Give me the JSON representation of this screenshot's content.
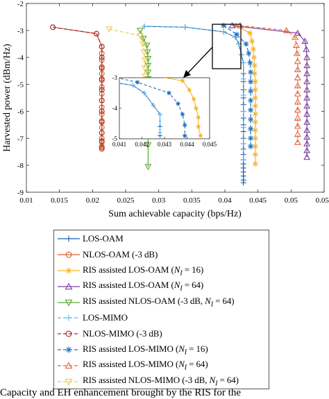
{
  "chart_data": {
    "type": "line",
    "xlabel": "Sum achievable capacity (bps/Hz)",
    "ylabel": "Harvested power (dBm/Hz)",
    "xlim": [
      0.01,
      0.055
    ],
    "ylim": [
      -9,
      -2
    ],
    "x_ticks": [
      "0.01",
      "0.015",
      "0.02",
      "0.025",
      "0.03",
      "0.035",
      "0.04",
      "0.045",
      "0.05",
      "0.055"
    ],
    "y_ticks": [
      "-2",
      "-3",
      "-4",
      "-5",
      "-6",
      "-7",
      "-8",
      "-9"
    ],
    "grid": false,
    "legend_position": "below",
    "series": [
      {
        "name": "LOS-OAM",
        "color": "#1f5fae",
        "marker": "plus",
        "dash": "solid",
        "x": [
          0.0278,
          0.034,
          0.0398,
          0.0416,
          0.0421,
          0.0425,
          0.0428,
          0.0428,
          0.0428,
          0.0428,
          0.0428,
          0.0428,
          0.0428,
          0.0428,
          0.0428,
          0.0428,
          0.0428,
          0.0428,
          0.0428,
          0.0428,
          0.0428,
          0.0428,
          0.0428,
          0.0428,
          0.0428,
          0.0428,
          0.0428
        ],
        "y": [
          -2.85,
          -2.88,
          -3.05,
          -3.25,
          -3.5,
          -3.9,
          -4.2,
          -4.6,
          -4.9,
          -5.2,
          -5.5,
          -5.75,
          -6.0,
          -6.25,
          -6.5,
          -6.75,
          -7.0,
          -7.2,
          -7.4,
          -7.6,
          -7.8,
          -7.95,
          -8.1,
          -8.25,
          -8.4,
          -8.55,
          -8.65
        ]
      },
      {
        "name": "NLOS-OAM (-3 dB)",
        "color": "#d45a2a",
        "marker": "circle",
        "dash": "solid",
        "x": [
          0.014,
          0.0206,
          0.0214,
          0.0214,
          0.0214,
          0.0214,
          0.0214,
          0.0214,
          0.0214,
          0.0214,
          0.0214,
          0.0214,
          0.0214,
          0.0214,
          0.0214,
          0.0214,
          0.0214,
          0.0214,
          0.0214,
          0.0214
        ],
        "y": [
          -2.88,
          -3.12,
          -3.6,
          -3.85,
          -4.1,
          -4.35,
          -4.6,
          -4.85,
          -5.1,
          -5.35,
          -5.6,
          -5.85,
          -6.1,
          -6.35,
          -6.6,
          -6.8,
          -7.0,
          -7.15,
          -7.3,
          -7.4
        ]
      },
      {
        "name": "RIS assisted LOS-OAM (N_I = 16)",
        "color": "#f2b62a",
        "marker": "star",
        "dash": "solid",
        "x": [
          0.0416,
          0.0438,
          0.0441,
          0.0443,
          0.0444,
          0.0445,
          0.0445,
          0.0446,
          0.0446,
          0.0446,
          0.0446,
          0.0446,
          0.0446,
          0.0446,
          0.0446,
          0.0446,
          0.0446,
          0.0446
        ],
        "y": [
          -2.82,
          -3.1,
          -3.4,
          -3.7,
          -4.0,
          -4.3,
          -4.6,
          -4.9,
          -5.2,
          -5.5,
          -5.8,
          -6.1,
          -6.4,
          -6.7,
          -7.0,
          -7.3,
          -7.6,
          -7.95
        ]
      },
      {
        "name": "RIS assisted LOS-OAM (N_I = 64)",
        "color": "#7d3fa1",
        "marker": "triangle-up",
        "dash": "solid",
        "x": [
          0.0411,
          0.051,
          0.0521,
          0.0523,
          0.0524,
          0.0524,
          0.0524,
          0.0524,
          0.0524,
          0.0524,
          0.0524,
          0.0524,
          0.0524,
          0.0524,
          0.0524,
          0.0524,
          0.0524,
          0.0524
        ],
        "y": [
          -2.82,
          -3.1,
          -3.4,
          -3.7,
          -4.0,
          -4.3,
          -4.6,
          -4.9,
          -5.2,
          -5.5,
          -5.8,
          -6.1,
          -6.4,
          -6.7,
          -6.95,
          -7.2,
          -7.45,
          -7.7
        ]
      },
      {
        "name": "RIS assisted NLOS-OAM (-3 dB, N_I = 64)",
        "color": "#5aa62e",
        "marker": "triangle-down",
        "dash": "solid",
        "x": [
          0.0272,
          0.0277,
          0.0282,
          0.0283,
          0.0284,
          0.0284,
          0.0284,
          0.0284,
          0.0284,
          0.0284,
          0.0284,
          0.0284,
          0.0284,
          0.0284,
          0.0284,
          0.0284
        ],
        "y": [
          -3.0,
          -3.3,
          -3.55,
          -3.8,
          -4.05,
          -4.3,
          -4.55,
          -4.8,
          -5.05,
          -5.3,
          -5.55,
          -5.8,
          -6.05,
          -6.4,
          -7.25,
          -8.05
        ]
      },
      {
        "name": "LOS-MIMO",
        "color": "#56b4e9",
        "marker": "plus",
        "dash": "dashed",
        "x": [
          0.0278,
          0.034,
          0.0398,
          0.0416,
          0.0421,
          0.0425,
          0.0428,
          0.0428,
          0.0428,
          0.0428,
          0.0428,
          0.0428,
          0.0428
        ],
        "y": [
          -2.85,
          -2.88,
          -3.05,
          -3.25,
          -3.5,
          -3.9,
          -4.2,
          -4.8,
          -5.4,
          -6.0,
          -6.6,
          -7.2,
          -7.8
        ]
      },
      {
        "name": "NLOS-MIMO (-3 dB)",
        "color": "#a8242a",
        "marker": "circle",
        "dash": "dashed",
        "x": [
          0.014,
          0.0206,
          0.0214,
          0.0214,
          0.0214,
          0.0214,
          0.0214,
          0.0214,
          0.0214,
          0.0214,
          0.0214,
          0.0214,
          0.0214
        ],
        "y": [
          -2.88,
          -3.12,
          -3.6,
          -4.0,
          -4.4,
          -4.8,
          -5.2,
          -5.6,
          -6.0,
          -6.4,
          -6.8,
          -7.1,
          -7.35
        ]
      },
      {
        "name": "RIS assisted LOS-MIMO (N_I = 16)",
        "color": "#1f6fbf",
        "marker": "star",
        "dash": "dashed",
        "x": [
          0.0398,
          0.0418,
          0.0432,
          0.0436,
          0.0438,
          0.0439,
          0.0439,
          0.0439,
          0.0439,
          0.0439,
          0.0439,
          0.0439,
          0.0439,
          0.0439
        ],
        "y": [
          -2.82,
          -3.15,
          -3.5,
          -3.85,
          -4.2,
          -4.55,
          -4.9,
          -5.25,
          -5.6,
          -5.95,
          -6.3,
          -6.65,
          -7.0,
          -7.3
        ]
      },
      {
        "name": "RIS assisted LOS-MIMO (N_I = 64)",
        "color": "#e8633a",
        "marker": "triangle-up",
        "dash": "dashed",
        "x": [
          0.0423,
          0.0493,
          0.0506,
          0.0508,
          0.0509,
          0.051,
          0.051,
          0.051,
          0.051,
          0.051,
          0.051,
          0.051,
          0.051,
          0.051,
          0.051,
          0.051
        ],
        "y": [
          -2.82,
          -3.0,
          -3.25,
          -3.55,
          -3.85,
          -4.15,
          -4.45,
          -4.75,
          -5.05,
          -5.35,
          -5.65,
          -5.95,
          -6.25,
          -6.55,
          -6.85,
          -7.15
        ]
      },
      {
        "name": "RIS assisted NLOS-MIMO (-3 dB, N_I = 64)",
        "color": "#f2c84b",
        "marker": "triangle-down",
        "dash": "dashed",
        "x": [
          0.0225,
          0.0272,
          0.0276,
          0.0278,
          0.0279,
          0.0279,
          0.0279,
          0.0279,
          0.0279,
          0.0279,
          0.0279,
          0.0279
        ],
        "y": [
          -2.95,
          -3.2,
          -3.5,
          -3.8,
          -4.1,
          -4.4,
          -4.7,
          -5.0,
          -5.3,
          -5.6,
          -5.9,
          -6.2
        ]
      }
    ],
    "inset": {
      "xlim": [
        0.041,
        0.045
      ],
      "ylim": [
        -5,
        -3
      ],
      "x_ticks": [
        "0.041",
        "0.042",
        "0.043",
        "0.044",
        "0.045"
      ],
      "y_ticks": [
        "-3",
        "-4",
        "-5"
      ]
    }
  },
  "legend": {
    "items": [
      {
        "label": "LOS-OAM"
      },
      {
        "label": "NLOS-OAM (-3 dB)"
      },
      {
        "label": "RIS assisted LOS-OAM (",
        "sub_var": "N",
        "sub": "I",
        "suffix": " = 16)"
      },
      {
        "label": "RIS assisted LOS-OAM (",
        "sub_var": "N",
        "sub": "I",
        "suffix": " = 64)"
      },
      {
        "label": "RIS assisted NLOS-OAM (-3 dB,  ",
        "sub_var": "N",
        "sub": "I",
        "suffix": " = 64)"
      },
      {
        "label": "LOS-MIMO"
      },
      {
        "label": "NLOS-MIMO (-3 dB)"
      },
      {
        "label": "RIS assisted LOS-MIMO (",
        "sub_var": "N",
        "sub": "I",
        "suffix": " = 16)"
      },
      {
        "label": "RIS assisted LOS-MIMO (",
        "sub_var": "N",
        "sub": "I",
        "suffix": " = 64)"
      },
      {
        "label": "RIS assisted NLOS-MIMO (-3 dB, ",
        "sub_var": "N",
        "sub": "I",
        "suffix": " = 64)"
      }
    ]
  },
  "caption": {
    "text": "Capacity and EH enhancement brought by the RIS for the"
  }
}
